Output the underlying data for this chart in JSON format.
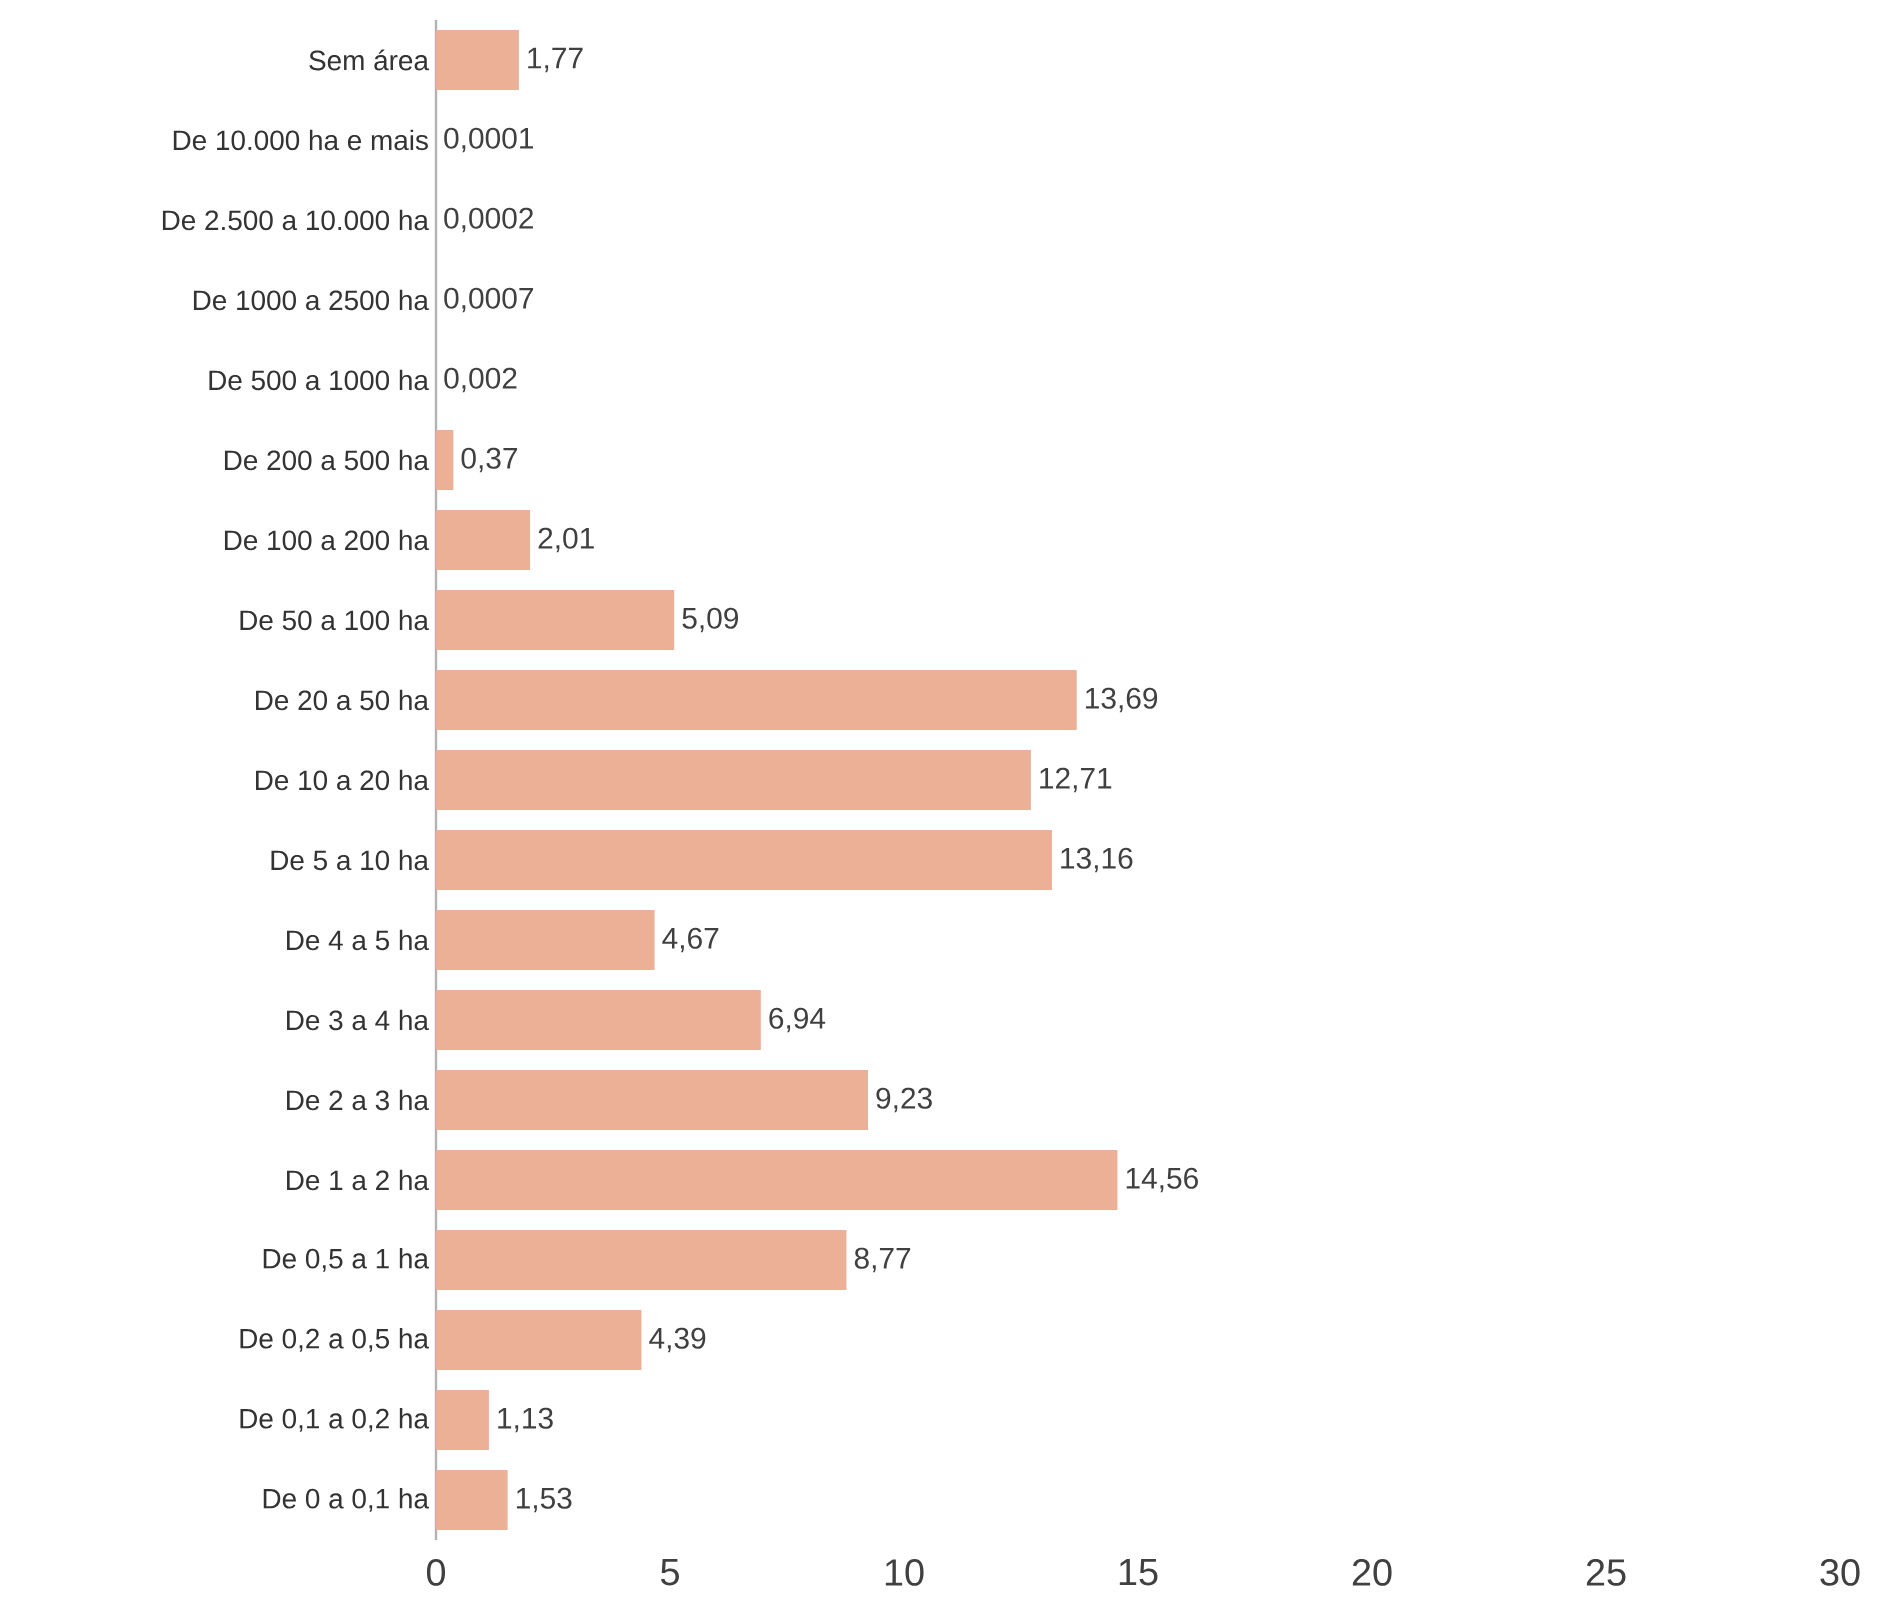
{
  "chart_data": {
    "type": "bar",
    "orientation": "horizontal",
    "categories": [
      "Sem área",
      "De 10.000 ha e mais",
      "De 2.500 a 10.000 ha",
      "De 1000 a 2500 ha",
      "De 500 a 1000 ha",
      "De 200 a 500 ha",
      "De 100 a 200 ha",
      "De 50 a 100 ha",
      "De 20 a 50 ha",
      "De 10 a 20 ha",
      "De 5 a 10 ha",
      "De 4 a  5 ha",
      "De 3 a  4 ha",
      "De 2 a  3 ha",
      "De 1 a  2 ha",
      "De 0,5 a  1 ha",
      "De 0,2 a  0,5 ha",
      "De 0,1 a  0,2 ha",
      "De 0 a  0,1 ha"
    ],
    "values": [
      1.77,
      0.0001,
      0.0002,
      0.0007,
      0.002,
      0.37,
      2.01,
      5.09,
      13.69,
      12.71,
      13.16,
      4.67,
      6.94,
      9.23,
      14.56,
      8.77,
      4.39,
      1.13,
      1.53
    ],
    "value_labels": [
      "1,77",
      "0,0001",
      "0,0002",
      "0,0007",
      "0,002",
      "0,37",
      "2,01",
      "5,09",
      "13,69",
      "12,71",
      "13,16",
      "4,67",
      "6,94",
      "9,23",
      "14,56",
      "8,77",
      "4,39",
      "1,13",
      "1,53"
    ],
    "color": "#ebb096",
    "xlim": [
      0,
      30
    ],
    "xticks": [
      0,
      5,
      10,
      15,
      20,
      25,
      30
    ]
  }
}
